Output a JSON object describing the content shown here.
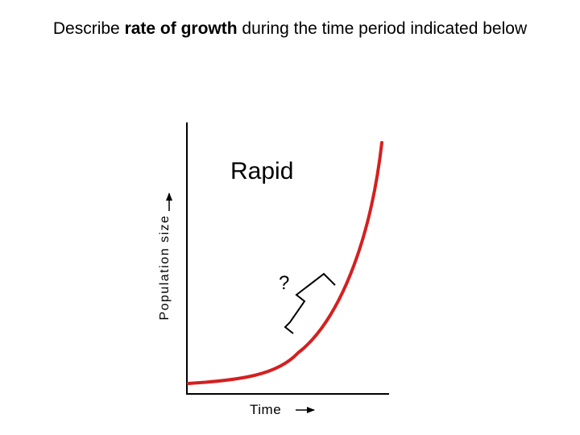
{
  "title": {
    "prefix": "Describe ",
    "emphasis": "rate of growth",
    "suffix": " during the time period indicated below"
  },
  "diagram": {
    "y_axis_label": "Population size",
    "x_axis_label": "Time",
    "region_label": "Rapid",
    "question_mark": "?",
    "curve_color": "#d42020",
    "axis_color": "#000000"
  }
}
